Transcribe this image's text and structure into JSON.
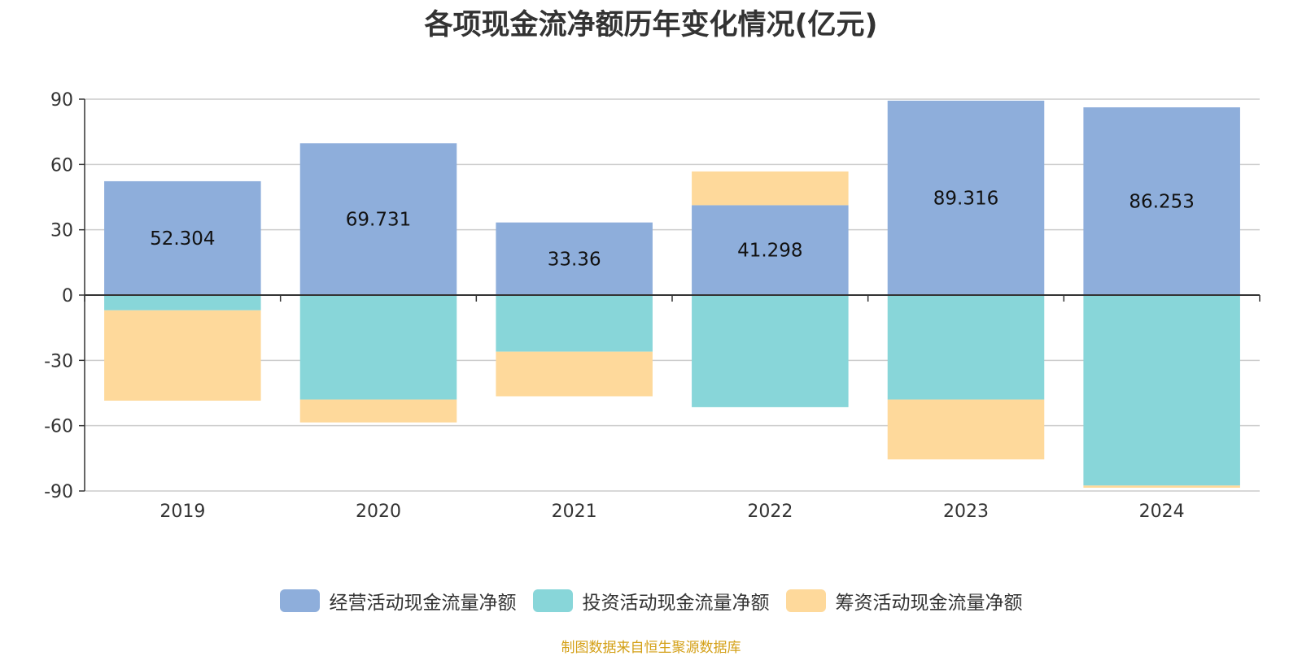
{
  "chart_data": {
    "type": "bar",
    "stacked": true,
    "title": "各项现金流净额历年变化情况(亿元)",
    "categories": [
      "2019",
      "2020",
      "2021",
      "2022",
      "2023",
      "2024"
    ],
    "ylim": [
      -90,
      90
    ],
    "yticks": [
      90,
      60,
      30,
      0,
      -30,
      -60,
      -90
    ],
    "grid": true,
    "legend_position": "bottom-center",
    "series": [
      {
        "name": "经营活动现金流量净额",
        "color": "#8eaedb",
        "values": [
          52.304,
          69.731,
          33.36,
          41.298,
          89.316,
          86.253
        ],
        "data_labels": [
          "52.304",
          "69.731",
          "33.36",
          "41.298",
          "89.316",
          "86.253"
        ]
      },
      {
        "name": "投资活动现金流量净额",
        "color": "#88d6d9",
        "values": [
          -7,
          -48,
          -26,
          -51.5,
          -48,
          -87.5
        ]
      },
      {
        "name": "筹资活动现金流量净额",
        "color": "#fed99b",
        "values": [
          -41.5,
          -10.5,
          -20.5,
          15.5,
          -27.5,
          -1
        ]
      }
    ],
    "source": "制图数据来自恒生聚源数据库"
  }
}
